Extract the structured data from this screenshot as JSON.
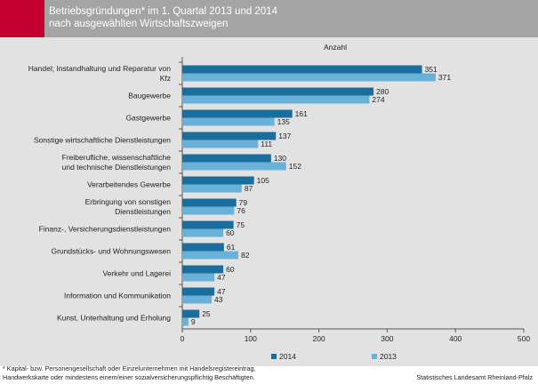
{
  "header": {
    "title": "Betriebsgründungen* im 1. Quartal 2013 und 2014\n nach ausgewählten Wirtschaftszweigen"
  },
  "footer": {
    "note": "* Kapital- bzw. Personengesellschaft oder Einzelunternehmen mit Handelsregistereintrag,\nHandwerkskarte oder mindestens einem/einer sozialversicherungspflichtig Beschäftigten.",
    "source": "Statistisches Landesamt Rheinland-Pfalz"
  },
  "colors": {
    "s2014": "#1a6e9e",
    "s2013": "#6ab1d8",
    "panel": "#e2e2e2",
    "header": "#a4a4a4",
    "accent": "#c3002f"
  },
  "chart_data": {
    "type": "bar",
    "orientation": "horizontal",
    "unit_label": "Anzahl",
    "categories": [
      [
        "Handel; Instandhaltung und Reparatur von",
        "Kfz"
      ],
      [
        "Baugewerbe"
      ],
      [
        "Gastgewerbe"
      ],
      [
        "Sonstige wirtschaftliche Dienstleistungen"
      ],
      [
        "Freiberufliche, wissenschaftliche",
        "und technische Dienstleistungen"
      ],
      [
        "Verarbeitendes Gewerbe"
      ],
      [
        "Erbringung von sonstigen",
        "Dienstleistungen"
      ],
      [
        "Finanz-, Versicherungsdienstleistungen"
      ],
      [
        "Grundstücks- und Wohnungswesen"
      ],
      [
        "Verkehr und Lagerei"
      ],
      [
        "Information und Kommunikation"
      ],
      [
        "Kunst, Unterhaltung und Erholung"
      ]
    ],
    "series": [
      {
        "name": "2014",
        "values": [
          351,
          280,
          161,
          137,
          130,
          105,
          79,
          75,
          61,
          60,
          47,
          25
        ]
      },
      {
        "name": "2013",
        "values": [
          371,
          274,
          135,
          111,
          152,
          87,
          76,
          60,
          82,
          47,
          43,
          9
        ]
      }
    ],
    "xlim": [
      0,
      500
    ],
    "xticks": [
      0,
      100,
      200,
      300,
      400,
      500
    ],
    "legend": "bottom"
  }
}
